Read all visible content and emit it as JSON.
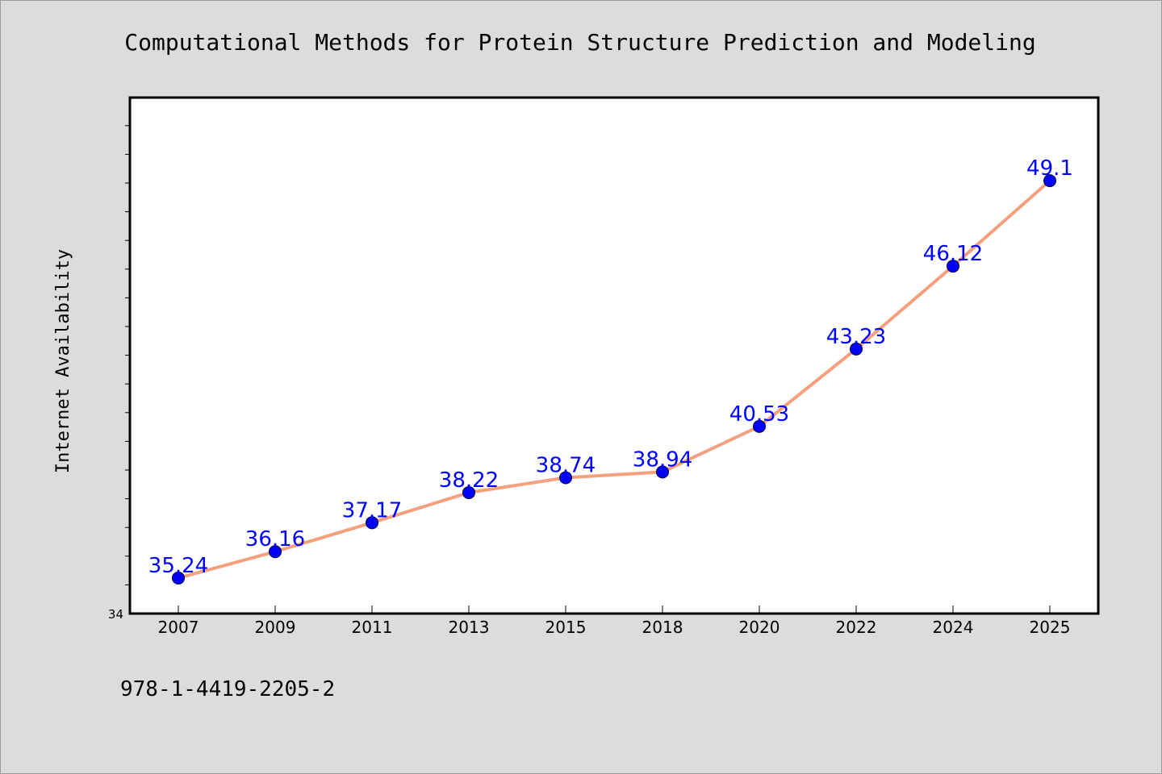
{
  "chart_data": {
    "type": "line",
    "title": "Computational Methods for Protein Structure Prediction and Modeling",
    "xlabel": "",
    "ylabel": "Internet Availability",
    "categories": [
      "2007",
      "2009",
      "2011",
      "2013",
      "2015",
      "2018",
      "2020",
      "2022",
      "2024",
      "2025"
    ],
    "series": [
      {
        "values": [
          35.24,
          36.16,
          37.17,
          38.22,
          38.74,
          38.94,
          40.53,
          43.23,
          46.12,
          49.1
        ]
      }
    ],
    "data_labels": [
      "35.24",
      "36.16",
      "37.17",
      "38.22",
      "38.74",
      "38.94",
      "40.53",
      "43.23",
      "46.12",
      "49.1"
    ],
    "ylim": [
      34,
      52
    ],
    "y_tick_labels": [
      "34"
    ],
    "grid": false,
    "legend": "none",
    "colors": {
      "line": "#f4a07e",
      "marker": "#0000ff",
      "data_label": "#0000ff",
      "background": "#dcdcdc",
      "plot_background": "#ffffff"
    },
    "footer_text": "978-1-4419-2205-2"
  }
}
